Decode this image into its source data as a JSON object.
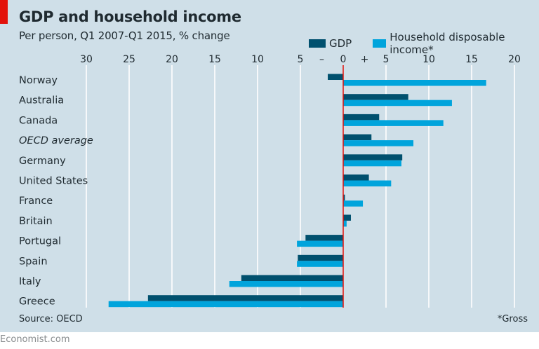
{
  "header": {
    "title": "GDP and household income",
    "subtitle": "Per person, Q1 2007-Q1 2015, % change"
  },
  "footer": {
    "source": "Source: OECD",
    "note": "*Gross",
    "brand": "Economist.com"
  },
  "colors": {
    "background": "#cfdfe8",
    "gdp": "#00506e",
    "household": "#00a4dc",
    "zero_line": "#e3120b",
    "gridline": "#ffffff",
    "accent_tag": "#e3120b"
  },
  "chart_data": {
    "type": "bar",
    "orientation": "horizontal",
    "title": "GDP and household income",
    "subtitle": "Per person, Q1 2007-Q1 2015, % change",
    "xlabel": "",
    "ylabel": "",
    "xlim": [
      -30,
      20
    ],
    "x_ticks": [
      -30,
      -25,
      -20,
      -15,
      -10,
      -5,
      0,
      5,
      10,
      15,
      20
    ],
    "x_tick_labels": [
      "30",
      "25",
      "20",
      "15",
      "10",
      "5",
      "0",
      "5",
      "10",
      "15",
      "20"
    ],
    "sign_labels": {
      "negative": "–",
      "positive": "+"
    },
    "grid": true,
    "legend_position": "top-right",
    "categories": [
      "Norway",
      "Australia",
      "Canada",
      "OECD average",
      "Germany",
      "United States",
      "France",
      "Britain",
      "Portugal",
      "Spain",
      "Italy",
      "Greece"
    ],
    "italic_categories": [
      "OECD average"
    ],
    "series": [
      {
        "name": "GDP",
        "values": [
          -1.8,
          7.6,
          4.2,
          3.3,
          6.9,
          3.0,
          0.2,
          0.9,
          -4.4,
          -5.3,
          -11.9,
          -22.8
        ]
      },
      {
        "name": "Household disposable income*",
        "values": [
          16.7,
          12.7,
          11.7,
          8.2,
          6.8,
          5.6,
          2.3,
          0.4,
          -5.4,
          -5.4,
          -13.3,
          -27.4
        ]
      }
    ],
    "source": "Source: OECD",
    "footnote": "*Gross"
  }
}
